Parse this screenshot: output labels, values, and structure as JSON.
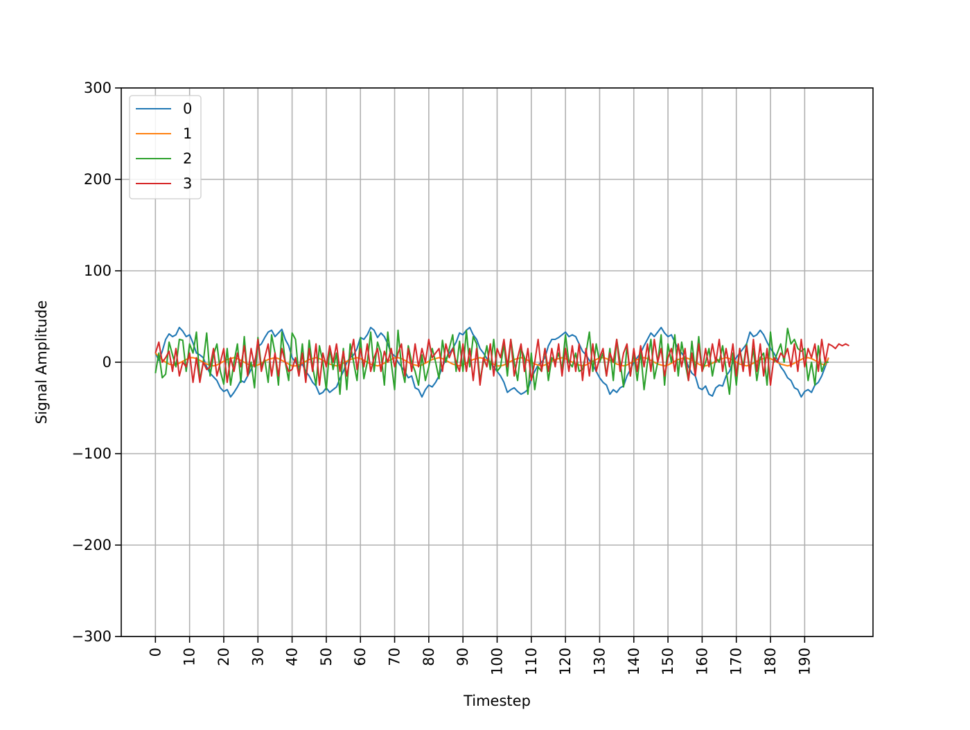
{
  "chart_data": {
    "type": "line",
    "title": "",
    "xlabel": "Timestep",
    "ylabel": "Signal Amplitude",
    "xlim": [
      -10,
      210
    ],
    "ylim": [
      -300,
      300
    ],
    "x_ticks": [
      0,
      10,
      20,
      30,
      40,
      50,
      60,
      70,
      80,
      90,
      100,
      110,
      120,
      130,
      140,
      150,
      160,
      170,
      180,
      190
    ],
    "x_tick_rotation": "vertical",
    "y_ticks": [
      -300,
      -200,
      -100,
      0,
      100,
      200,
      300
    ],
    "y_tick_labels": [
      "−300",
      "−200",
      "−100",
      "0",
      "100",
      "200",
      "300"
    ],
    "grid": true,
    "legend_position": "top-left",
    "series": [
      {
        "name": "0",
        "color": "#1f77b4",
        "values": [
          10,
          2,
          12,
          25,
          31,
          28,
          30,
          38,
          34,
          28,
          30,
          21,
          10,
          8,
          5,
          -5,
          -12,
          -16,
          -20,
          -28,
          -32,
          -30,
          -38,
          -33,
          -27,
          -20,
          -22,
          -15,
          -8,
          0,
          17,
          20,
          27,
          33,
          35,
          28,
          32,
          36,
          25,
          18,
          5,
          0,
          -5,
          -2,
          -10,
          -15,
          -22,
          -26,
          -35,
          -33,
          -28,
          -33,
          -30,
          -27,
          -18,
          -10,
          0,
          5,
          8,
          15,
          27,
          25,
          30,
          38,
          35,
          27,
          32,
          28,
          20,
          10,
          7,
          0,
          -5,
          -10,
          -17,
          -15,
          -28,
          -30,
          -38,
          -30,
          -25,
          -27,
          -22,
          -15,
          -5,
          3,
          10,
          15,
          22,
          32,
          30,
          35,
          38,
          30,
          25,
          15,
          10,
          4,
          0,
          -5,
          -10,
          -15,
          -22,
          -33,
          -30,
          -28,
          -32,
          -35,
          -33,
          -30,
          -18,
          -10,
          -3,
          0,
          5,
          18,
          25,
          25,
          27,
          30,
          33,
          28,
          30,
          28,
          20,
          12,
          8,
          2,
          -3,
          -10,
          -17,
          -22,
          -25,
          -35,
          -30,
          -33,
          -28,
          -26,
          -15,
          -8,
          0,
          5,
          10,
          18,
          25,
          32,
          28,
          33,
          38,
          32,
          28,
          30,
          22,
          15,
          10,
          5,
          -5,
          -12,
          -15,
          -28,
          -30,
          -26,
          -35,
          -37,
          -28,
          -25,
          -26,
          -15,
          -10,
          0,
          5,
          10,
          15,
          20,
          33,
          28,
          30,
          35,
          30,
          22,
          15,
          10,
          3,
          -5,
          -10,
          -17,
          -20,
          -28,
          -30,
          -38,
          -32,
          -30,
          -33,
          -25,
          -22,
          -15,
          -5,
          5
        ]
      },
      {
        "name": "1",
        "color": "#ff7f0e",
        "values": [
          10,
          6,
          3,
          0,
          -2,
          -3,
          -3,
          -1,
          1,
          3,
          5,
          5,
          4,
          2,
          0,
          -2,
          -3,
          -4,
          -3,
          -1,
          1,
          3,
          4,
          5,
          4,
          2,
          0,
          -2,
          -3,
          -4,
          -3,
          -1,
          1,
          3,
          4,
          5,
          4,
          2,
          0,
          -2,
          -4,
          -4,
          -3,
          -1,
          1,
          3,
          4,
          5,
          4,
          2,
          0,
          -2,
          -3,
          -4,
          -3,
          -1,
          1,
          3,
          4,
          5,
          4,
          2,
          0,
          -2,
          -3,
          -4,
          -3,
          -1,
          1,
          3,
          5,
          5,
          4,
          2,
          0,
          -2,
          -3,
          -4,
          -3,
          -1,
          1,
          3,
          4,
          5,
          4,
          2,
          0,
          -2,
          -3,
          -4,
          -3,
          -1,
          1,
          3,
          4,
          5,
          4,
          2,
          0,
          -2,
          -4,
          -4,
          -3,
          -1,
          1,
          3,
          4,
          5,
          4,
          2,
          0,
          -2,
          -3,
          -4,
          -3,
          -1,
          1,
          3,
          4,
          5,
          4,
          2,
          0,
          -2,
          -3,
          -4,
          -3,
          -1,
          1,
          3,
          5,
          5,
          4,
          2,
          0,
          -2,
          -3,
          -4,
          -3,
          -1,
          1,
          3,
          4,
          5,
          4,
          2,
          0,
          -2,
          -3,
          -4,
          -3,
          -1,
          1,
          3,
          4,
          5,
          4,
          2,
          0,
          -2,
          -4,
          -4,
          -3,
          -1,
          1,
          3,
          4,
          5,
          4,
          2,
          0,
          -2,
          -3,
          -4,
          -3,
          -1,
          1,
          3,
          4,
          5,
          4,
          2,
          0,
          -2,
          -3,
          -4,
          -3,
          -1,
          1,
          3,
          5,
          5,
          4,
          2,
          0,
          -2,
          -3,
          5
        ]
      },
      {
        "name": "2",
        "color": "#2ca02c",
        "values": [
          -12,
          10,
          -17,
          -13,
          22,
          8,
          -5,
          25,
          24,
          -10,
          20,
          10,
          33,
          -20,
          0,
          32,
          -15,
          8,
          20,
          -10,
          -24,
          15,
          -25,
          0,
          20,
          -22,
          28,
          -15,
          0,
          -28,
          27,
          -5,
          3,
          -22,
          30,
          10,
          -25,
          33,
          0,
          -20,
          32,
          25,
          -15,
          20,
          -20,
          24,
          -5,
          -25,
          18,
          0,
          -30,
          15,
          -8,
          10,
          -35,
          15,
          -30,
          20,
          0,
          -20,
          27,
          -18,
          0,
          33,
          -10,
          22,
          10,
          -25,
          33,
          0,
          -30,
          35,
          -5,
          -22,
          18,
          0,
          -10,
          -25,
          8,
          -20,
          -5,
          15,
          0,
          -18,
          24,
          0,
          15,
          30,
          -10,
          23,
          -10,
          35,
          -5,
          28,
          20,
          -20,
          0,
          18,
          -8,
          25,
          -10,
          -5,
          20,
          -15,
          25,
          0,
          -20,
          15,
          5,
          -35,
          10,
          -30,
          -5,
          -10,
          15,
          -20,
          5,
          0,
          10,
          -8,
          30,
          0,
          -5,
          10,
          -10,
          -8,
          10,
          33,
          -10,
          20,
          0,
          10,
          -15,
          15,
          -20,
          25,
          0,
          -27,
          18,
          -15,
          10,
          -20,
          12,
          -30,
          0,
          25,
          -18,
          0,
          30,
          -25,
          20,
          0,
          30,
          -15,
          22,
          0,
          -20,
          23,
          -10,
          28,
          -10,
          0,
          15,
          -15,
          5,
          0,
          18,
          -8,
          -35,
          10,
          -25,
          15,
          -5,
          20,
          -10,
          15,
          -20,
          5,
          10,
          -25,
          33,
          0,
          10,
          20,
          0,
          37,
          20,
          25,
          15,
          12,
          15,
          -20,
          0,
          -25,
          18,
          -10,
          0,
          0
        ]
      },
      {
        "name": "3",
        "color": "#d62728",
        "values": [
          10,
          22,
          0,
          5,
          12,
          -10,
          15,
          -15,
          0,
          -5,
          10,
          -22,
          5,
          -22,
          0,
          -8,
          -5,
          15,
          -15,
          0,
          15,
          -22,
          5,
          -10,
          10,
          -5,
          18,
          -15,
          15,
          -5,
          25,
          -10,
          5,
          20,
          -15,
          10,
          -15,
          15,
          0,
          -10,
          -8,
          5,
          -15,
          10,
          -22,
          15,
          -10,
          20,
          -25,
          10,
          -5,
          18,
          0,
          20,
          -10,
          12,
          -15,
          5,
          25,
          -8,
          15,
          -5,
          20,
          -10,
          5,
          15,
          -10,
          12,
          0,
          15,
          -5,
          10,
          20,
          -15,
          15,
          -10,
          20,
          -5,
          15,
          0,
          25,
          5,
          10,
          15,
          -10,
          20,
          5,
          15,
          0,
          -10,
          20,
          -10,
          15,
          -20,
          15,
          -25,
          5,
          -5,
          20,
          -15,
          15,
          5,
          25,
          -5,
          25,
          -15,
          5,
          20,
          -10,
          15,
          -20,
          0,
          25,
          -10,
          15,
          -10,
          15,
          -5,
          20,
          -15,
          15,
          -10,
          18,
          -10,
          20,
          -20,
          15,
          -15,
          20,
          -10,
          5,
          15,
          -15,
          10,
          0,
          25,
          -10,
          10,
          20,
          -15,
          15,
          -10,
          18,
          -5,
          20,
          -10,
          25,
          0,
          15,
          -15,
          5,
          15,
          -10,
          20,
          -5,
          15,
          -20,
          10,
          -15,
          20,
          -10,
          15,
          -5,
          20,
          0,
          25,
          -10,
          15,
          -5,
          20,
          -15,
          15,
          -10,
          18,
          -15,
          25,
          -10,
          20,
          -15,
          15,
          -25,
          5,
          0,
          10,
          5,
          15,
          -5,
          20,
          -10,
          25,
          -5,
          15,
          5,
          20,
          -10,
          25,
          0,
          20,
          18,
          15,
          20,
          18,
          20,
          18
        ]
      }
    ]
  }
}
